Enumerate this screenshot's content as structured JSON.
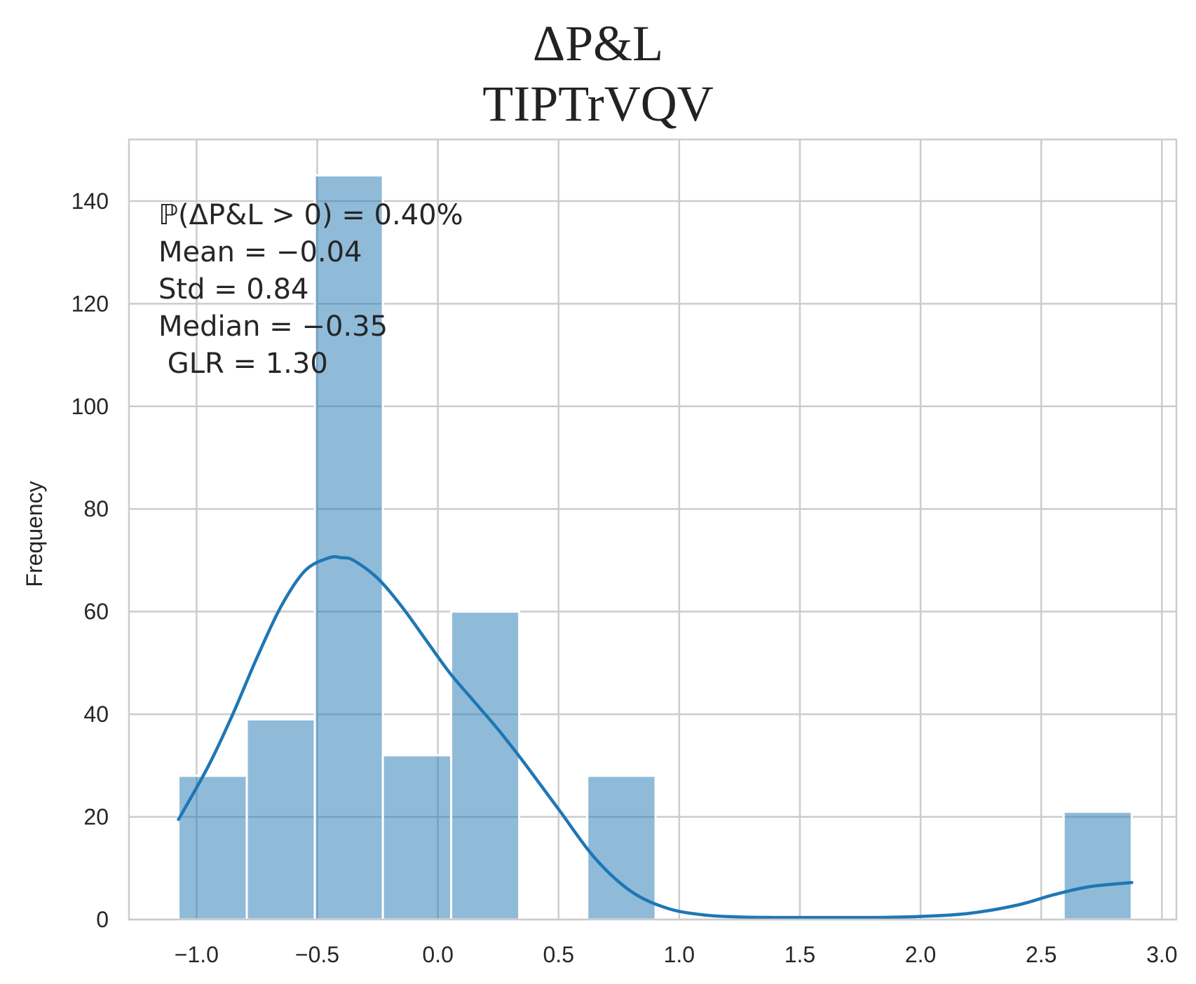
{
  "chart_data": {
    "type": "bar",
    "subtype": "histogram-with-kde",
    "title_lines": [
      "ΔP&L",
      "TIPTrVQV"
    ],
    "xlabel": "",
    "ylabel": "Frequency",
    "xlim": [
      -1.28,
      3.06
    ],
    "ylim": [
      0,
      152
    ],
    "xticks": [
      -1.0,
      -0.5,
      0.0,
      0.5,
      1.0,
      1.5,
      2.0,
      2.5,
      3.0
    ],
    "xtick_labels": [
      "−1.0",
      "−0.5",
      "0.0",
      "0.5",
      "1.0",
      "1.5",
      "2.0",
      "2.5",
      "3.0"
    ],
    "yticks": [
      0,
      20,
      40,
      60,
      80,
      100,
      120,
      140
    ],
    "ytick_labels": [
      "0",
      "20",
      "40",
      "60",
      "80",
      "100",
      "120",
      "140"
    ],
    "grid": true,
    "color": "#1f77b4",
    "bins": [
      {
        "x0": -1.075,
        "x1": -0.792,
        "count": 28
      },
      {
        "x0": -0.792,
        "x1": -0.51,
        "count": 39
      },
      {
        "x0": -0.51,
        "x1": -0.228,
        "count": 145
      },
      {
        "x0": -0.228,
        "x1": 0.055,
        "count": 32
      },
      {
        "x0": 0.055,
        "x1": 0.337,
        "count": 60
      },
      {
        "x0": 0.619,
        "x1": 0.902,
        "count": 28
      },
      {
        "x0": 2.593,
        "x1": 2.875,
        "count": 21
      }
    ],
    "kde": {
      "x": [
        -1.075,
        -0.95,
        -0.85,
        -0.75,
        -0.65,
        -0.55,
        -0.45,
        -0.4,
        -0.35,
        -0.25,
        -0.15,
        -0.05,
        0.05,
        0.15,
        0.25,
        0.35,
        0.5,
        0.65,
        0.8,
        0.95,
        1.1,
        1.25,
        1.4,
        1.6,
        1.8,
        2.0,
        2.2,
        2.4,
        2.55,
        2.7,
        2.875
      ],
      "y": [
        19.5,
        30,
        40,
        51,
        61,
        68,
        70.5,
        70.5,
        70,
        66.5,
        61,
        54.5,
        48,
        42.5,
        37,
        31,
        21.5,
        12,
        5.5,
        2.2,
        0.9,
        0.5,
        0.4,
        0.4,
        0.4,
        0.6,
        1.2,
        2.8,
        4.8,
        6.4,
        7.2
      ]
    },
    "annotations": [
      {
        "text": "ℙ(ΔP&L > 0) = 0.40%"
      },
      {
        "text": "Mean = −0.04"
      },
      {
        "text": "Std = 0.84"
      },
      {
        "text": "Median = −0.35"
      },
      {
        "text": " GLR = 1.30"
      }
    ]
  }
}
